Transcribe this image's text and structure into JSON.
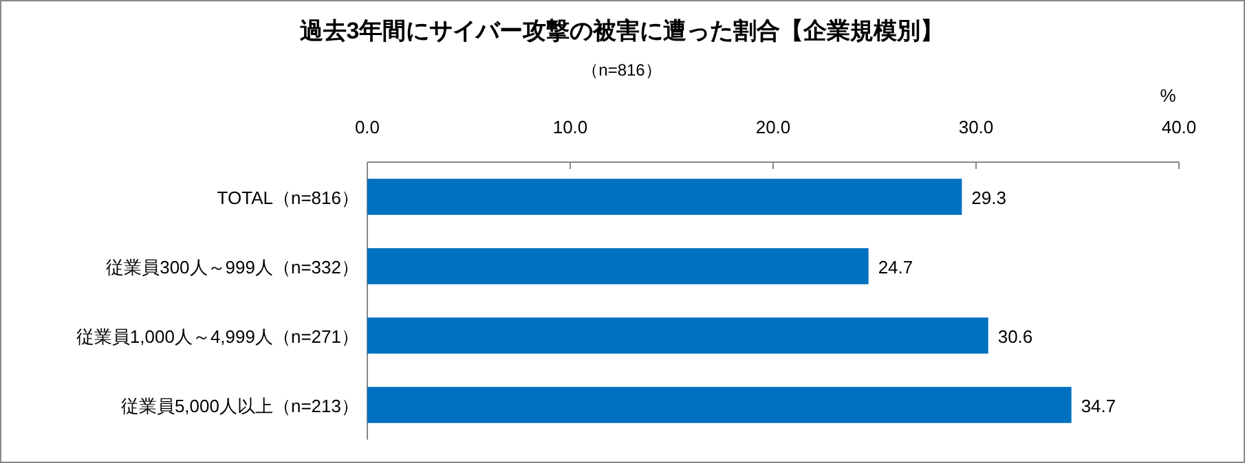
{
  "chart_data": {
    "type": "bar",
    "orientation": "horizontal",
    "title": "過去3年間にサイバー攻撃の被害に遭った割合【企業規模別】",
    "subtitle": "（n=816）",
    "xlabel": "%",
    "categories": [
      "TOTAL（n=816）",
      "従業員300人～999人（n=332）",
      "従業員1,000人～4,999人（n=271）",
      "従業員5,000人以上（n=213）"
    ],
    "values": [
      29.3,
      24.7,
      30.6,
      34.7
    ],
    "color": "#0070c0",
    "xlim": [
      0,
      40
    ],
    "xticks": [
      {
        "value": 0,
        "label": "0.0"
      },
      {
        "value": 10,
        "label": "10.0"
      },
      {
        "value": 20,
        "label": "20.0"
      },
      {
        "value": 30,
        "label": "30.0"
      },
      {
        "value": 40,
        "label": "40.0"
      }
    ],
    "data_labels": true,
    "grid": false
  }
}
